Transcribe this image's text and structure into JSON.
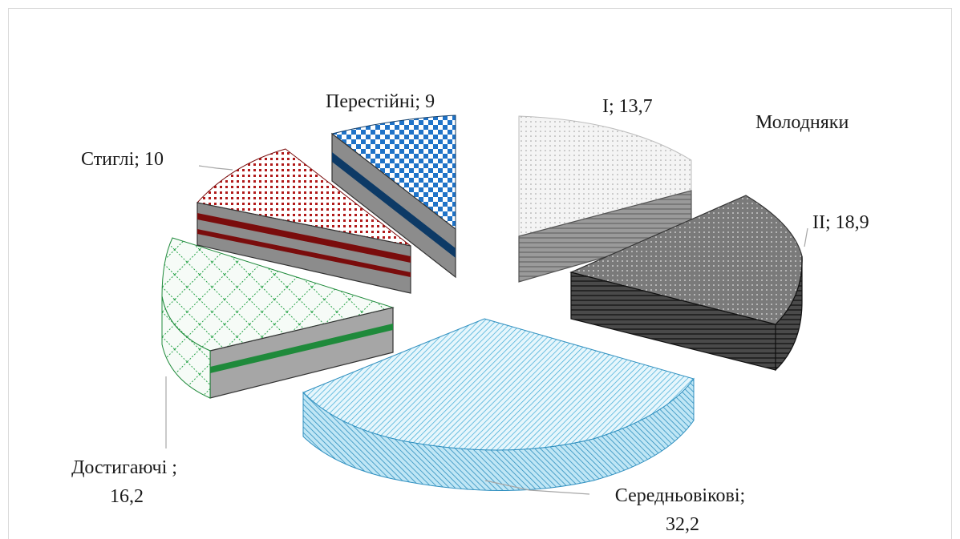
{
  "chart_data": {
    "type": "pie",
    "style": "3d-exploded",
    "group_label": "Молодняки",
    "slices": [
      {
        "label": "I; 13,7",
        "name": "I",
        "value": 13.7,
        "top": "#f2f2f2",
        "side": "#8c8c8c",
        "stripe": "#5f5f5f"
      },
      {
        "label": "II; 18,9",
        "name": "II",
        "value": 18.9,
        "top": "#7f7f7f",
        "side": "#3a3a3a",
        "stripe": "#1a1a1a"
      },
      {
        "label": "Середньовікові; 32,2",
        "name": "Середньовікові",
        "value": 32.2,
        "top": "#c9ecf7",
        "side": "#8fd3ee",
        "stripe": "#4aa6cf"
      },
      {
        "label": "Достигаючі ; 16,2",
        "name": "Достигаючі",
        "value": 16.2,
        "top": "#e9f7ec",
        "side": "#8c8c8c",
        "stripe": "#1f8a3b"
      },
      {
        "label": "Стиглі; 10",
        "name": "Стиглі",
        "value": 10,
        "top": "#f6d9d9",
        "side": "#8c8c8c",
        "stripe": "#7a0c0c"
      },
      {
        "label": "Перестійні; 9",
        "name": "Перестійні",
        "value": 9,
        "top": "#3f8ed8",
        "side": "#8c8c8c",
        "stripe": "#0d3a66"
      }
    ]
  }
}
